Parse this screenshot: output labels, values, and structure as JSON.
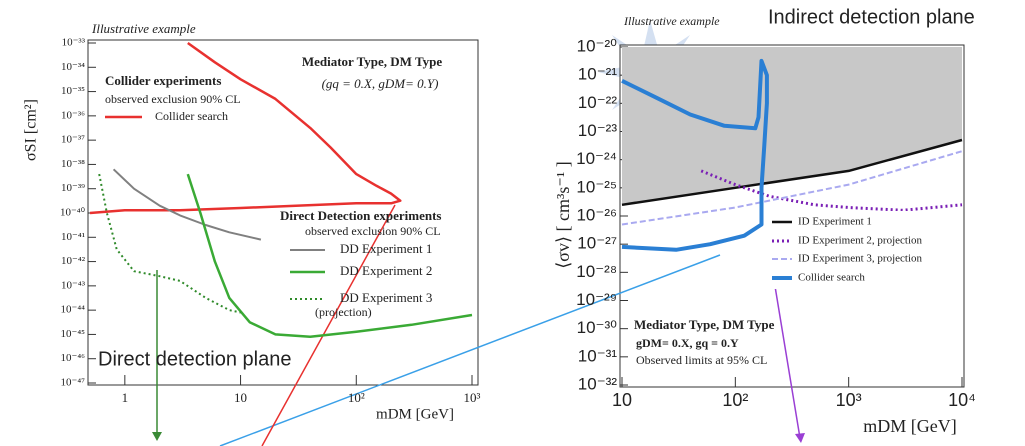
{
  "chart_data": [
    {
      "type": "line",
      "log_x": true,
      "log_y": true,
      "x_label": "mDM [GeV]",
      "y_label": "σSI [cm²]",
      "xlim": [
        0.5,
        1000
      ],
      "ylim": [
        1e-47,
        1e-33
      ],
      "xticks": [
        1,
        10,
        {
          "value": 100,
          "label": "10²"
        },
        {
          "value": 1000,
          "label": "10³"
        }
      ],
      "yticks": [
        {
          "value": 1e-33,
          "label": "10⁻³³"
        },
        {
          "value": 1e-34,
          "label": "10⁻³⁴"
        },
        {
          "value": 1e-35,
          "label": "10⁻³⁵"
        },
        {
          "value": 1e-36,
          "label": "10⁻³⁶"
        },
        {
          "value": 1e-37,
          "label": "10⁻³⁷"
        },
        {
          "value": 1e-38,
          "label": "10⁻³⁸"
        },
        {
          "value": 1e-39,
          "label": "10⁻³⁹"
        },
        {
          "value": 1e-40,
          "label": "10⁻⁴⁰"
        },
        {
          "value": 1e-41,
          "label": "10⁻⁴¹"
        },
        {
          "value": 1e-42,
          "label": "10⁻⁴²"
        },
        {
          "value": 1e-43,
          "label": "10⁻⁴³"
        },
        {
          "value": 1e-44,
          "label": "10⁻⁴⁴"
        },
        {
          "value": 1e-45,
          "label": "10⁻⁴⁵"
        },
        {
          "value": 1e-46,
          "label": "10⁻⁴⁶"
        },
        {
          "value": 1e-47,
          "label": "10⁻⁴⁷"
        }
      ],
      "annotations": [
        "Illustrative example",
        "Mediator Type, DM Type",
        "(gq = 0.X, gDM= 0.Y)",
        "Collider experiments",
        "observed exclusion 90% CL",
        "Direct Detection experiments",
        "observed exclusion 90% CL",
        "(projection)",
        "Direct detection plane"
      ],
      "series": [
        {
          "name": "Collider search",
          "color": "#e8312f",
          "dash": "solid",
          "x": [
            0.5,
            1,
            3,
            10,
            30,
            100,
            200,
            240,
            200,
            150,
            100,
            60,
            40,
            20,
            10,
            6,
            3.5
          ],
          "values": [
            1e-40,
            1.3e-40,
            1.3e-40,
            1.6e-40,
            2e-40,
            2.5e-40,
            2.5e-40,
            3.2e-40,
            6.3e-40,
            1.3e-39,
            4e-39,
            5e-38,
            3.2e-37,
            5e-36,
            3.2e-35,
            1.6e-34,
            1e-33
          ]
        },
        {
          "name": "DD Experiment 1",
          "color": "#808080",
          "dash": "solid",
          "x": [
            0.8,
            1.2,
            2,
            3,
            5,
            8,
            15
          ],
          "values": [
            6.3e-39,
            1e-39,
            2e-40,
            8e-41,
            3.2e-41,
            1.6e-41,
            8e-42
          ]
        },
        {
          "name": "DD Experiment 2",
          "color": "#3aaa35",
          "dash": "solid",
          "x": [
            3.5,
            4.5,
            6,
            8,
            12,
            20,
            40,
            100,
            300,
            1000
          ],
          "values": [
            4e-39,
            1e-40,
            1e-42,
            3.2e-44,
            3.2e-45,
            1e-45,
            8e-46,
            1.3e-45,
            2.5e-45,
            6.3e-45
          ]
        },
        {
          "name": "DD Experiment 3",
          "color": "#2f8a2a",
          "dash": "dotted",
          "x": [
            0.6,
            0.7,
            0.85,
            1.2,
            2,
            3,
            5,
            8,
            10
          ],
          "values": [
            4e-39,
            1e-40,
            3.2e-42,
            4e-43,
            2.5e-43,
            1.6e-43,
            3.2e-44,
            1e-44,
            8e-45
          ]
        }
      ]
    },
    {
      "type": "line",
      "log_x": true,
      "log_y": true,
      "x_label": "mDM  [GeV]",
      "y_label": "⟨σv⟩ [ cm³s⁻¹ ]",
      "xlim": [
        10,
        10000
      ],
      "ylim": [
        1e-32,
        1e-20
      ],
      "xticks": [
        10,
        {
          "value": 100,
          "label": "10²"
        },
        {
          "value": 1000,
          "label": "10³"
        },
        {
          "value": 10000,
          "label": "10⁴"
        }
      ],
      "yticks": [
        {
          "value": 1e-20,
          "label": "10⁻²⁰"
        },
        {
          "value": 1e-21,
          "label": "10⁻²¹"
        },
        {
          "value": 1e-22,
          "label": "10⁻²²"
        },
        {
          "value": 1e-23,
          "label": "10⁻²³"
        },
        {
          "value": 1e-24,
          "label": "10⁻²⁴"
        },
        {
          "value": 1e-25,
          "label": "10⁻²⁵"
        },
        {
          "value": 1e-26,
          "label": "10⁻²⁶"
        },
        {
          "value": 1e-27,
          "label": "10⁻²⁷"
        },
        {
          "value": 1e-28,
          "label": "10⁻²⁸"
        },
        {
          "value": 1e-29,
          "label": "10⁻²⁹"
        },
        {
          "value": 1e-30,
          "label": "10⁻³⁰"
        },
        {
          "value": 1e-31,
          "label": "10⁻³¹"
        },
        {
          "value": 1e-32,
          "label": "10⁻³²"
        }
      ],
      "annotations": [
        "Illustrative example",
        "Indirect detection plane",
        "Mediator Type, DM Type",
        "gDM= 0.X, gq = 0.Y",
        "Observed limits at 95% CL"
      ],
      "series": [
        {
          "name": "ID Experiment 1",
          "color": "#111111",
          "dash": "solid",
          "fill_above": "#c8c8c8",
          "x": [
            10,
            100,
            1000,
            10000
          ],
          "values": [
            2.5e-26,
            1e-25,
            4e-25,
            5e-24
          ]
        },
        {
          "name": "ID Experiment 2, projection",
          "color": "#7a1fb5",
          "dash": "dotted",
          "x": [
            50,
            100,
            200,
            500,
            1000,
            3000,
            10000
          ],
          "values": [
            4e-25,
            1.3e-25,
            5e-26,
            2.5e-26,
            2e-26,
            1.6e-26,
            2.5e-26
          ]
        },
        {
          "name": "ID Experiment 3, projection",
          "color": "#a9a9f0",
          "dash": "dashed",
          "x": [
            10,
            100,
            1000,
            10000
          ],
          "values": [
            5e-27,
            2e-26,
            1.3e-25,
            2e-24
          ]
        },
        {
          "name": "Collider search",
          "color": "#2a7fd4",
          "dash": "solid",
          "x": [
            10,
            20,
            40,
            80,
            150,
            160,
            170,
            190,
            190,
            180,
            170,
            170,
            120,
            60,
            30,
            10
          ],
          "values": [
            6.3e-22,
            1.6e-22,
            4e-23,
            1.6e-23,
            1.3e-23,
            3.2e-23,
            3.2e-21,
            1e-21,
            1e-22,
            3.2e-24,
            1e-25,
            5e-27,
            2e-27,
            1e-27,
            6.3e-28,
            8e-28
          ]
        }
      ]
    }
  ]
}
